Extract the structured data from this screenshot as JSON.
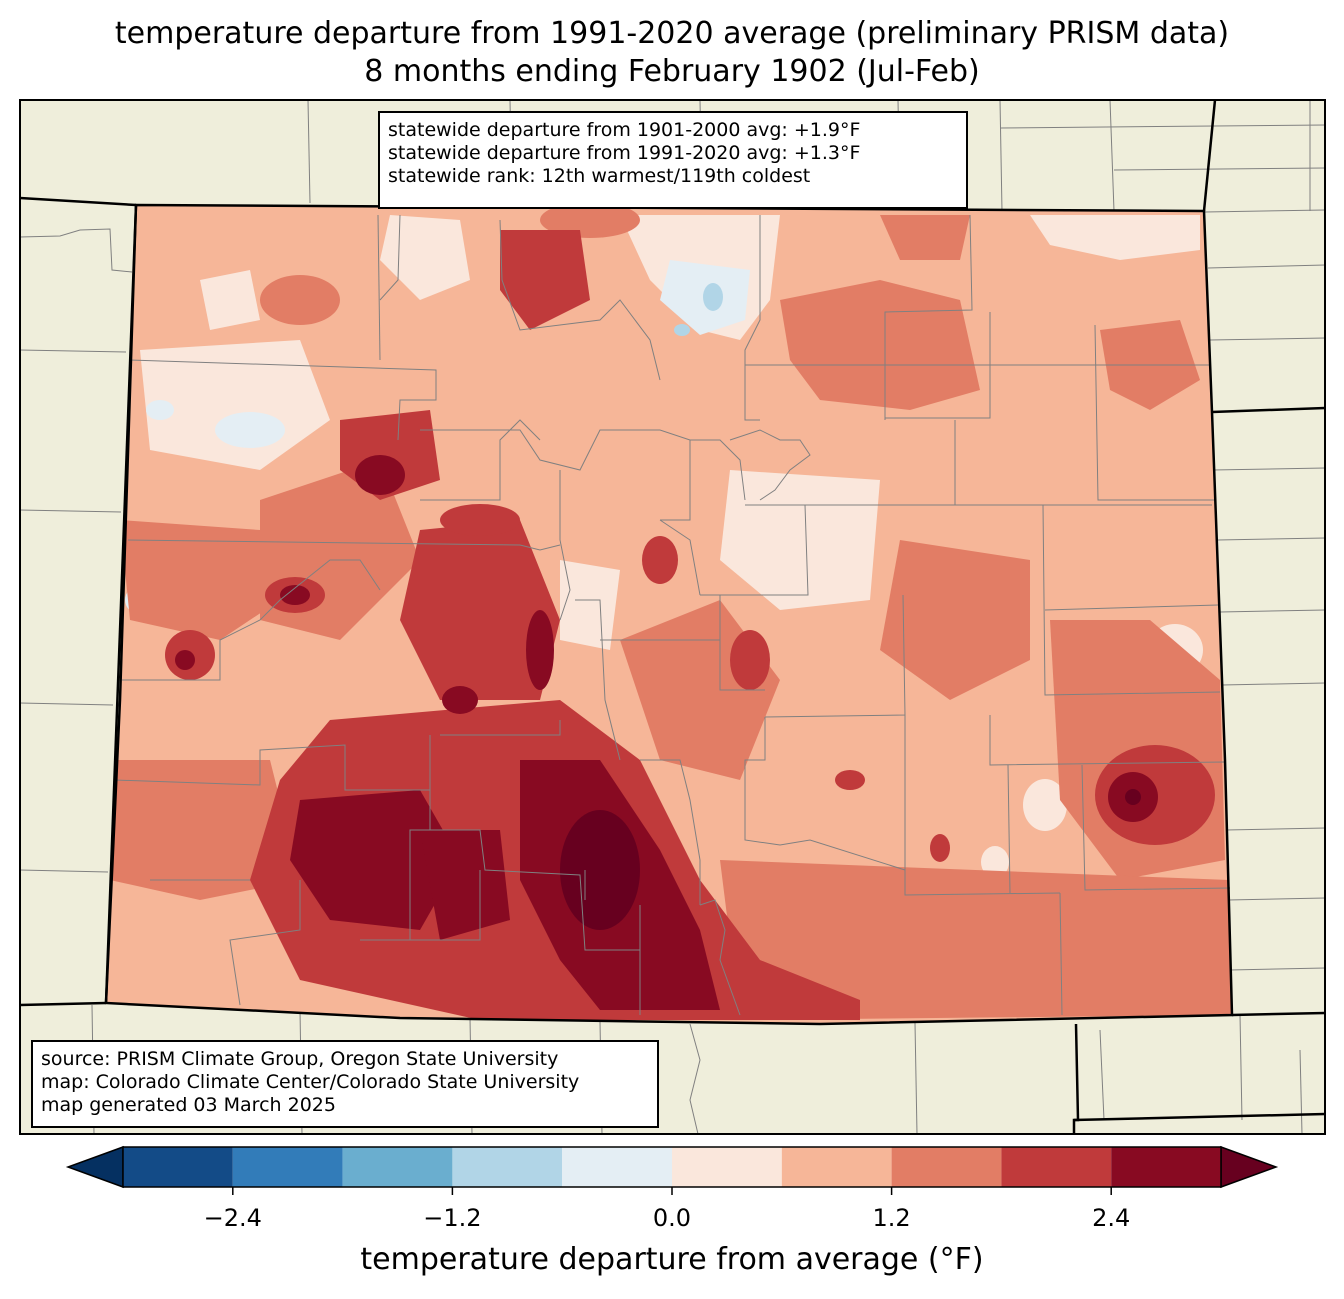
{
  "title": {
    "line1": "temperature departure from 1991-2020 average (preliminary PRISM data)",
    "line2": "8 months ending February 1902 (Jul-Feb)"
  },
  "stats": {
    "line1": "statewide departure from 1901-2000 avg: +1.9°F",
    "line2": "statewide departure from 1991-2020 avg: +1.3°F",
    "line3": "statewide rank: 12th warmest/119th coldest"
  },
  "source": {
    "line1": "source: PRISM Climate Group, Oregon State University",
    "line2": "map: Colorado Climate Center/Colorado State University",
    "line3": "map generated 03 March 2025"
  },
  "colorbar": {
    "label": "temperature departure from average (°F)",
    "ticks": [
      {
        "value": -2.4,
        "label": "−2.4"
      },
      {
        "value": -1.2,
        "label": "−1.2"
      },
      {
        "value": 0.0,
        "label": "0.0"
      },
      {
        "value": 1.2,
        "label": "1.2"
      },
      {
        "value": 2.4,
        "label": "2.4"
      }
    ],
    "range": [
      -3.0,
      3.0
    ],
    "bin_size": 0.6,
    "colors": [
      "#134b87",
      "#327cb9",
      "#6aaecf",
      "#b1d5e7",
      "#e4eef4",
      "#fae7dc",
      "#f6b698",
      "#e27d65",
      "#c03a3b",
      "#880a22"
    ],
    "under_color": "#053061",
    "over_color": "#67001f"
  },
  "map_colors": {
    "land": "#efeedb",
    "county_lines": "#808080",
    "state_lines": "#000000"
  }
}
